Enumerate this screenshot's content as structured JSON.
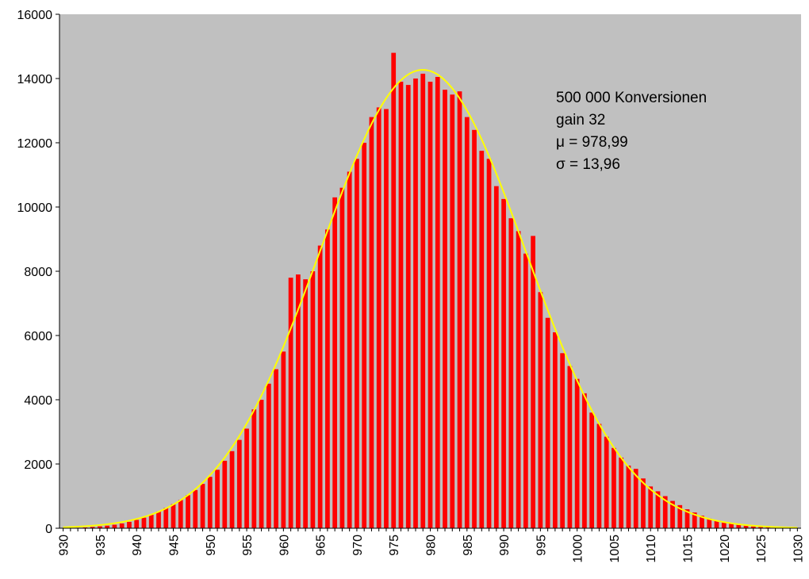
{
  "chart_data": {
    "type": "bar",
    "title": "",
    "xlabel": "",
    "ylabel": "",
    "xlim": [
      930,
      1030
    ],
    "ylim": [
      0,
      16000
    ],
    "grid": false,
    "x_ticks": [
      930,
      935,
      940,
      945,
      950,
      955,
      960,
      965,
      970,
      975,
      980,
      985,
      990,
      995,
      1000,
      1005,
      1010,
      1015,
      1020,
      1025,
      1030
    ],
    "y_ticks": [
      0,
      2000,
      4000,
      6000,
      8000,
      10000,
      12000,
      14000,
      16000
    ],
    "annotations": [
      "500 000 Konversionen",
      "gain 32",
      "μ = 978,99",
      "σ = 13,96"
    ],
    "colors": {
      "plot_bg": "#c0c0c0",
      "bars": "#ff0000",
      "curve": "#ffff00"
    },
    "x": [
      930,
      931,
      932,
      933,
      934,
      935,
      936,
      937,
      938,
      939,
      940,
      941,
      942,
      943,
      944,
      945,
      946,
      947,
      948,
      949,
      950,
      951,
      952,
      953,
      954,
      955,
      956,
      957,
      958,
      959,
      960,
      961,
      962,
      963,
      964,
      965,
      966,
      967,
      968,
      969,
      970,
      971,
      972,
      973,
      974,
      975,
      976,
      977,
      978,
      979,
      980,
      981,
      982,
      983,
      984,
      985,
      986,
      987,
      988,
      989,
      990,
      991,
      992,
      993,
      994,
      995,
      996,
      997,
      998,
      999,
      1000,
      1001,
      1002,
      1003,
      1004,
      1005,
      1006,
      1007,
      1008,
      1009,
      1010,
      1011,
      1012,
      1013,
      1014,
      1015,
      1016,
      1017,
      1018,
      1019,
      1020,
      1021,
      1022,
      1023,
      1024,
      1025,
      1026,
      1027,
      1028,
      1029,
      1030
    ],
    "series": [
      {
        "type": "bar",
        "values": [
          5,
          10,
          15,
          25,
          40,
          60,
          80,
          110,
          150,
          200,
          260,
          330,
          420,
          520,
          630,
          750,
          880,
          1030,
          1190,
          1380,
          1600,
          1820,
          2100,
          2400,
          2750,
          3100,
          3700,
          4000,
          4500,
          4950,
          5500,
          7800,
          7900,
          7750,
          8000,
          8800,
          9300,
          10300,
          10600,
          11100,
          11500,
          12000,
          12800,
          13100,
          13050,
          14800,
          13900,
          13800,
          14000,
          14150,
          13900,
          14050,
          13650,
          13500,
          13600,
          12800,
          12400,
          11750,
          11500,
          10650,
          10250,
          9650,
          9250,
          8550,
          9100,
          7350,
          6550,
          6100,
          5450,
          5050,
          4650,
          4200,
          3600,
          3250,
          2850,
          2500,
          2200,
          1950,
          1850,
          1550,
          1300,
          1150,
          1000,
          850,
          720,
          590,
          490,
          390,
          300,
          240,
          190,
          150,
          110,
          80,
          55,
          40,
          25,
          18,
          12,
          8,
          5
        ]
      },
      {
        "type": "line",
        "mu": 978.99,
        "sigma": 13.96,
        "peak": 14270
      }
    ]
  }
}
